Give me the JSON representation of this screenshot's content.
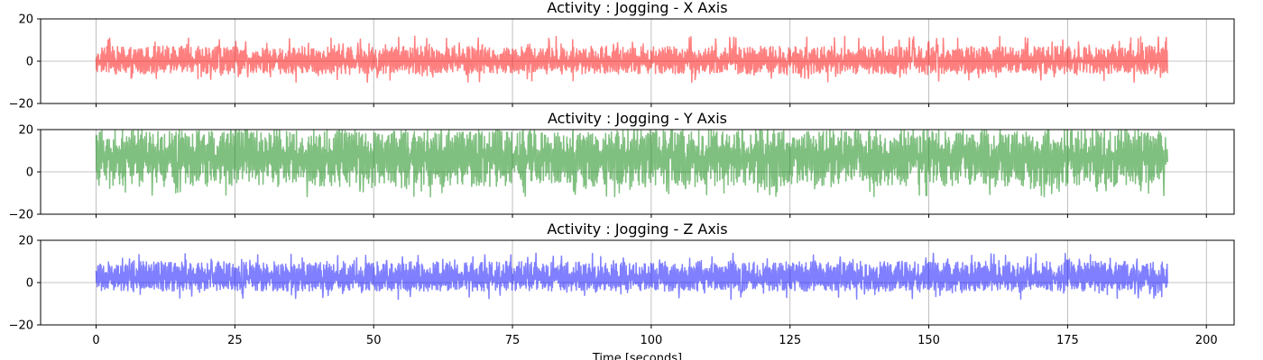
{
  "chart_data": [
    {
      "type": "line",
      "title": "Activity : Jogging - X Axis",
      "xlabel": "",
      "ylabel": "",
      "xlim": [
        -10,
        205
      ],
      "ylim": [
        -20,
        20
      ],
      "xticks": [
        0,
        25,
        50,
        75,
        100,
        125,
        150,
        175,
        200
      ],
      "yticks": [
        -20,
        0,
        20
      ],
      "show_xtick_labels": false,
      "grid": true,
      "color": "#ff0000",
      "alpha": 0.5,
      "x_range": [
        0,
        193
      ],
      "series": [
        {
          "signal": {
            "mean": 0,
            "amp_low": -6,
            "amp_high": 7,
            "spike_low": -10,
            "spike_high": 12
          }
        }
      ]
    },
    {
      "type": "line",
      "title": "Activity : Jogging - Y Axis",
      "xlabel": "",
      "ylabel": "",
      "xlim": [
        -10,
        205
      ],
      "ylim": [
        -20,
        20
      ],
      "xticks": [
        0,
        25,
        50,
        75,
        100,
        125,
        150,
        175,
        200
      ],
      "yticks": [
        -20,
        0,
        20
      ],
      "show_xtick_labels": false,
      "grid": true,
      "color": "#008000",
      "alpha": 0.5,
      "x_range": [
        0,
        193
      ],
      "series": [
        {
          "signal": {
            "mean": 7,
            "amp_low": -7,
            "amp_high": 19.5,
            "spike_low": -12,
            "spike_high": 20
          }
        }
      ]
    },
    {
      "type": "line",
      "title": "Activity : Jogging - Z Axis",
      "xlabel": "Time [seconds]",
      "ylabel": "",
      "xlim": [
        -10,
        205
      ],
      "ylim": [
        -20,
        20
      ],
      "xticks": [
        0,
        25,
        50,
        75,
        100,
        125,
        150,
        175,
        200
      ],
      "yticks": [
        -20,
        0,
        20
      ],
      "show_xtick_labels": true,
      "grid": true,
      "color": "#0000ff",
      "alpha": 0.5,
      "x_range": [
        0,
        193
      ],
      "series": [
        {
          "signal": {
            "mean": 2,
            "amp_low": -4,
            "amp_high": 10,
            "spike_low": -8,
            "spike_high": 14
          }
        }
      ]
    }
  ]
}
